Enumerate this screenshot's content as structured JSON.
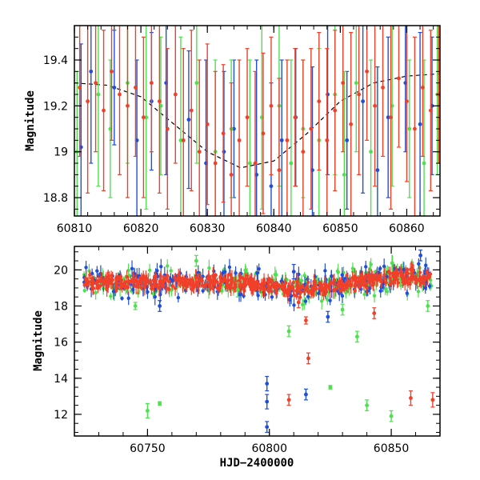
{
  "colors": {
    "blue": "#1f4fd8",
    "green": "#4fe04f",
    "red": "#f0402a",
    "frame": "#000000",
    "model": "#000000"
  },
  "chart_data": [
    {
      "type": "scatter",
      "title": "",
      "xlabel": "",
      "ylabel": "Magnitude",
      "xlim": [
        60810,
        60865
      ],
      "ylim": [
        19.55,
        18.72
      ],
      "y_inverted": true,
      "x_ticks": [
        "60810",
        "60820",
        "60830",
        "60840",
        "60850",
        "60860"
      ],
      "y_ticks": [
        "18.8",
        "19",
        "19.2",
        "19.4"
      ],
      "x_tick_values": [
        60810,
        60820,
        60830,
        60840,
        60850,
        60860
      ],
      "y_tick_values": [
        18.8,
        19.0,
        19.2,
        19.4
      ],
      "model_curve": {
        "style": "dashed",
        "x": [
          60810,
          60815,
          60820,
          60825,
          60830,
          60835,
          60840,
          60845,
          60850,
          60855,
          60860,
          60865
        ],
        "y": [
          19.3,
          19.29,
          19.24,
          19.12,
          19.0,
          18.93,
          18.96,
          19.08,
          19.22,
          19.3,
          19.33,
          19.34
        ]
      },
      "series": [
        {
          "color": "blue",
          "x": [
            60809.2,
            60811.0,
            60812.5,
            60816.0,
            60819.4,
            60821.6,
            60823.8,
            60827.2,
            60829.8,
            60832.5,
            60834.0,
            60837.4,
            60839.6,
            60841.2,
            60843.3,
            60845.8,
            60848.1,
            60851.0,
            60853.4,
            60855.6,
            60857.2,
            60859.8,
            60862.0,
            60863.8
          ],
          "y": [
            19.12,
            19.02,
            19.35,
            19.28,
            19.05,
            19.22,
            19.3,
            19.14,
            18.95,
            19.0,
            19.1,
            18.9,
            18.85,
            19.05,
            19.15,
            18.92,
            19.25,
            19.05,
            19.22,
            18.92,
            19.15,
            19.3,
            19.12,
            19.2
          ],
          "err": [
            0.3,
            0.45,
            0.4,
            0.25,
            0.35,
            0.3,
            0.4,
            0.3,
            0.45,
            0.35,
            0.3,
            0.5,
            0.45,
            0.35,
            0.3,
            0.45,
            0.35,
            0.3,
            0.4,
            0.45,
            0.35,
            0.3,
            0.4,
            0.3
          ]
        },
        {
          "color": "green",
          "x": [
            60810.4,
            60813.6,
            60815.4,
            60818.0,
            60820.8,
            60823.0,
            60826.0,
            60828.4,
            60831.2,
            60833.6,
            60836.4,
            60838.2,
            60840.8,
            60842.6,
            60844.4,
            60846.8,
            60849.2,
            60850.6,
            60852.4,
            60854.6,
            60857.8,
            60860.4,
            60862.6,
            60864.6
          ],
          "y": [
            19.0,
            19.25,
            19.1,
            19.3,
            19.15,
            19.2,
            19.05,
            19.3,
            19.0,
            19.1,
            18.95,
            19.15,
            19.2,
            18.95,
            19.1,
            19.05,
            19.25,
            18.9,
            19.3,
            19.0,
            19.2,
            19.1,
            18.95,
            19.25
          ],
          "err": [
            0.35,
            0.4,
            0.3,
            0.35,
            0.4,
            0.3,
            0.45,
            0.35,
            0.4,
            0.3,
            0.45,
            0.4,
            0.35,
            0.45,
            0.3,
            0.4,
            0.35,
            0.45,
            0.3,
            0.4,
            0.35,
            0.3,
            0.45,
            0.35
          ]
        },
        {
          "color": "red",
          "x": [
            60809.6,
            60810.8,
            60812.0,
            60813.2,
            60814.4,
            60815.6,
            60816.8,
            60818.0,
            60819.2,
            60820.4,
            60821.6,
            60822.8,
            60824.0,
            60825.2,
            60826.4,
            60827.6,
            60828.8,
            60830.0,
            60831.2,
            60832.4,
            60833.6,
            60834.8,
            60836.0,
            60837.2,
            60838.4,
            60839.6,
            60840.8,
            60842.0,
            60843.2,
            60844.4,
            60845.6,
            60846.8,
            60848.0,
            60849.2,
            60850.4,
            60851.6,
            60852.8,
            60854.0,
            60855.2,
            60856.4,
            60857.6,
            60858.8,
            60860.0,
            60861.2,
            60862.4,
            60863.6,
            60864.8
          ],
          "y": [
            19.2,
            19.28,
            19.22,
            19.3,
            19.18,
            19.35,
            19.25,
            19.2,
            19.28,
            19.15,
            19.3,
            19.22,
            19.1,
            19.25,
            19.05,
            19.18,
            19.0,
            19.12,
            18.95,
            19.08,
            18.9,
            19.05,
            19.15,
            18.95,
            19.08,
            19.2,
            18.92,
            19.05,
            19.15,
            19.0,
            19.1,
            19.22,
            19.05,
            19.18,
            19.3,
            19.12,
            19.25,
            19.35,
            19.2,
            19.28,
            19.15,
            19.32,
            19.22,
            19.1,
            19.28,
            19.18,
            19.25
          ],
          "err": [
            0.35,
            0.3,
            0.4,
            0.3,
            0.35,
            0.3,
            0.35,
            0.4,
            0.3,
            0.35,
            0.3,
            0.4,
            0.35,
            0.3,
            0.4,
            0.35,
            0.4,
            0.35,
            0.4,
            0.3,
            0.4,
            0.35,
            0.3,
            0.4,
            0.35,
            0.3,
            0.4,
            0.35,
            0.3,
            0.4,
            0.35,
            0.3,
            0.4,
            0.35,
            0.3,
            0.4,
            0.35,
            0.3,
            0.35,
            0.3,
            0.4,
            0.3,
            0.35,
            0.4,
            0.3,
            0.35,
            0.3
          ]
        }
      ]
    },
    {
      "type": "scatter",
      "title": "",
      "xlabel": "HJD−2400000",
      "ylabel": "Magnitude",
      "xlim": [
        60720,
        60870
      ],
      "ylim": [
        21.3,
        10.8
      ],
      "y_inverted": true,
      "x_ticks": [
        "60750",
        "60800",
        "60850"
      ],
      "y_ticks": [
        "12",
        "14",
        "16",
        "18",
        "20"
      ],
      "x_tick_values": [
        60750,
        60800,
        60850
      ],
      "y_tick_values": [
        12,
        14,
        16,
        18,
        20
      ],
      "baseline_mag": 19.3,
      "outliers": {
        "blue": {
          "x": [
            60799,
            60799,
            60799,
            60815,
            60824,
            60755,
            60862,
            60810
          ],
          "y": [
            11.3,
            12.7,
            13.7,
            13.1,
            17.4,
            18.0,
            20.8,
            19.9
          ],
          "err": [
            0.3,
            0.4,
            0.4,
            0.3,
            0.3,
            0.3,
            0.3,
            0.4
          ]
        },
        "green": {
          "x": [
            60750,
            60755,
            60825,
            60840,
            60850,
            60836,
            60808,
            60745,
            60787,
            60770,
            60830,
            60865
          ],
          "y": [
            12.2,
            12.6,
            13.5,
            12.5,
            11.9,
            16.3,
            16.6,
            18.0,
            18.9,
            20.5,
            17.8,
            18.0
          ],
          "err": [
            0.4,
            0.1,
            0.1,
            0.3,
            0.3,
            0.3,
            0.3,
            0.2,
            0.4,
            0.3,
            0.3,
            0.3
          ]
        },
        "red": {
          "x": [
            60808,
            60816,
            60815,
            60858,
            60867,
            60812,
            60843
          ],
          "y": [
            12.8,
            15.1,
            17.2,
            12.9,
            12.8,
            18.2,
            17.6
          ],
          "err": [
            0.3,
            0.3,
            0.2,
            0.4,
            0.4,
            0.3,
            0.3
          ]
        }
      }
    }
  ]
}
